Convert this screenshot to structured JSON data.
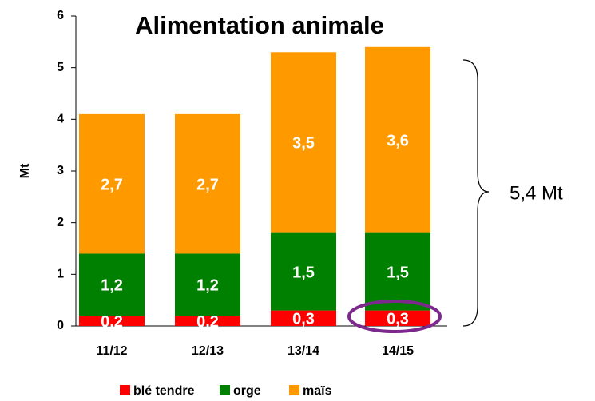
{
  "chart_data": {
    "type": "bar",
    "stacked": true,
    "title": "Alimentation animale",
    "y_label": "Mt",
    "categories": [
      "11/12",
      "12/13",
      "13/14",
      "14/15"
    ],
    "series": [
      {
        "name": "blé tendre",
        "color": "#ff0000",
        "values": [
          0.2,
          0.2,
          0.3,
          0.3
        ],
        "value_labels": [
          "0,2",
          "0,2",
          "0,3",
          "0,3"
        ]
      },
      {
        "name": "orge",
        "color": "#008000",
        "values": [
          1.2,
          1.2,
          1.5,
          1.5
        ],
        "value_labels": [
          "1,2",
          "1,2",
          "1,5",
          "1,5"
        ]
      },
      {
        "name": "maïs",
        "color": "#ff9900",
        "values": [
          2.7,
          2.7,
          3.5,
          3.6
        ],
        "value_labels": [
          "2,7",
          "2,7",
          "3,5",
          "3,6"
        ]
      }
    ],
    "ylim": [
      0,
      6
    ],
    "yticks": [
      0,
      1,
      2,
      3,
      4,
      5,
      6
    ],
    "annotation": "5,4 Mt"
  }
}
